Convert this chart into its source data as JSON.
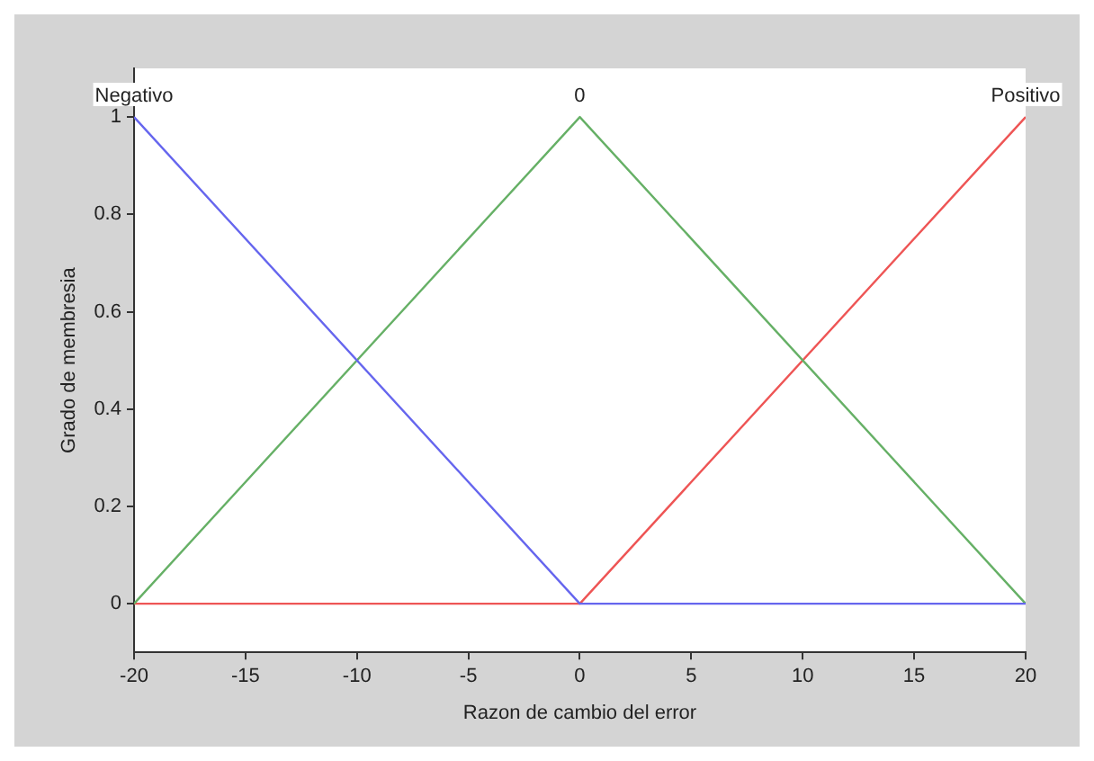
{
  "chart_data": {
    "type": "line",
    "xlabel": "Razon de cambio del error",
    "ylabel": "Grado de membresia",
    "series": [
      {
        "color": "#6666ee",
        "x": [
          -20,
          0,
          20
        ],
        "values": [
          1,
          0,
          0
        ]
      },
      {
        "color": "#66b066",
        "x": [
          -20,
          0,
          20
        ],
        "values": [
          0,
          1,
          0
        ]
      },
      {
        "color": "#ee5555",
        "x": [
          -20,
          0,
          20
        ],
        "values": [
          0,
          0,
          1
        ]
      }
    ],
    "xlim": [
      -20,
      20
    ],
    "xticks": [
      -20,
      -15,
      -10,
      -5,
      0,
      5,
      10,
      15,
      20
    ],
    "ylim": [
      -0.1,
      1.1
    ],
    "yticks": [
      0,
      0.2,
      0.4,
      0.6,
      0.8,
      1
    ],
    "annotations": [
      {
        "text": "Negativo",
        "x": -20,
        "y": 1
      },
      {
        "text": "0",
        "x": 0,
        "y": 1
      },
      {
        "text": "Positivo",
        "x": 20,
        "y": 1
      }
    ],
    "marker": "none",
    "line_style": "solid"
  }
}
